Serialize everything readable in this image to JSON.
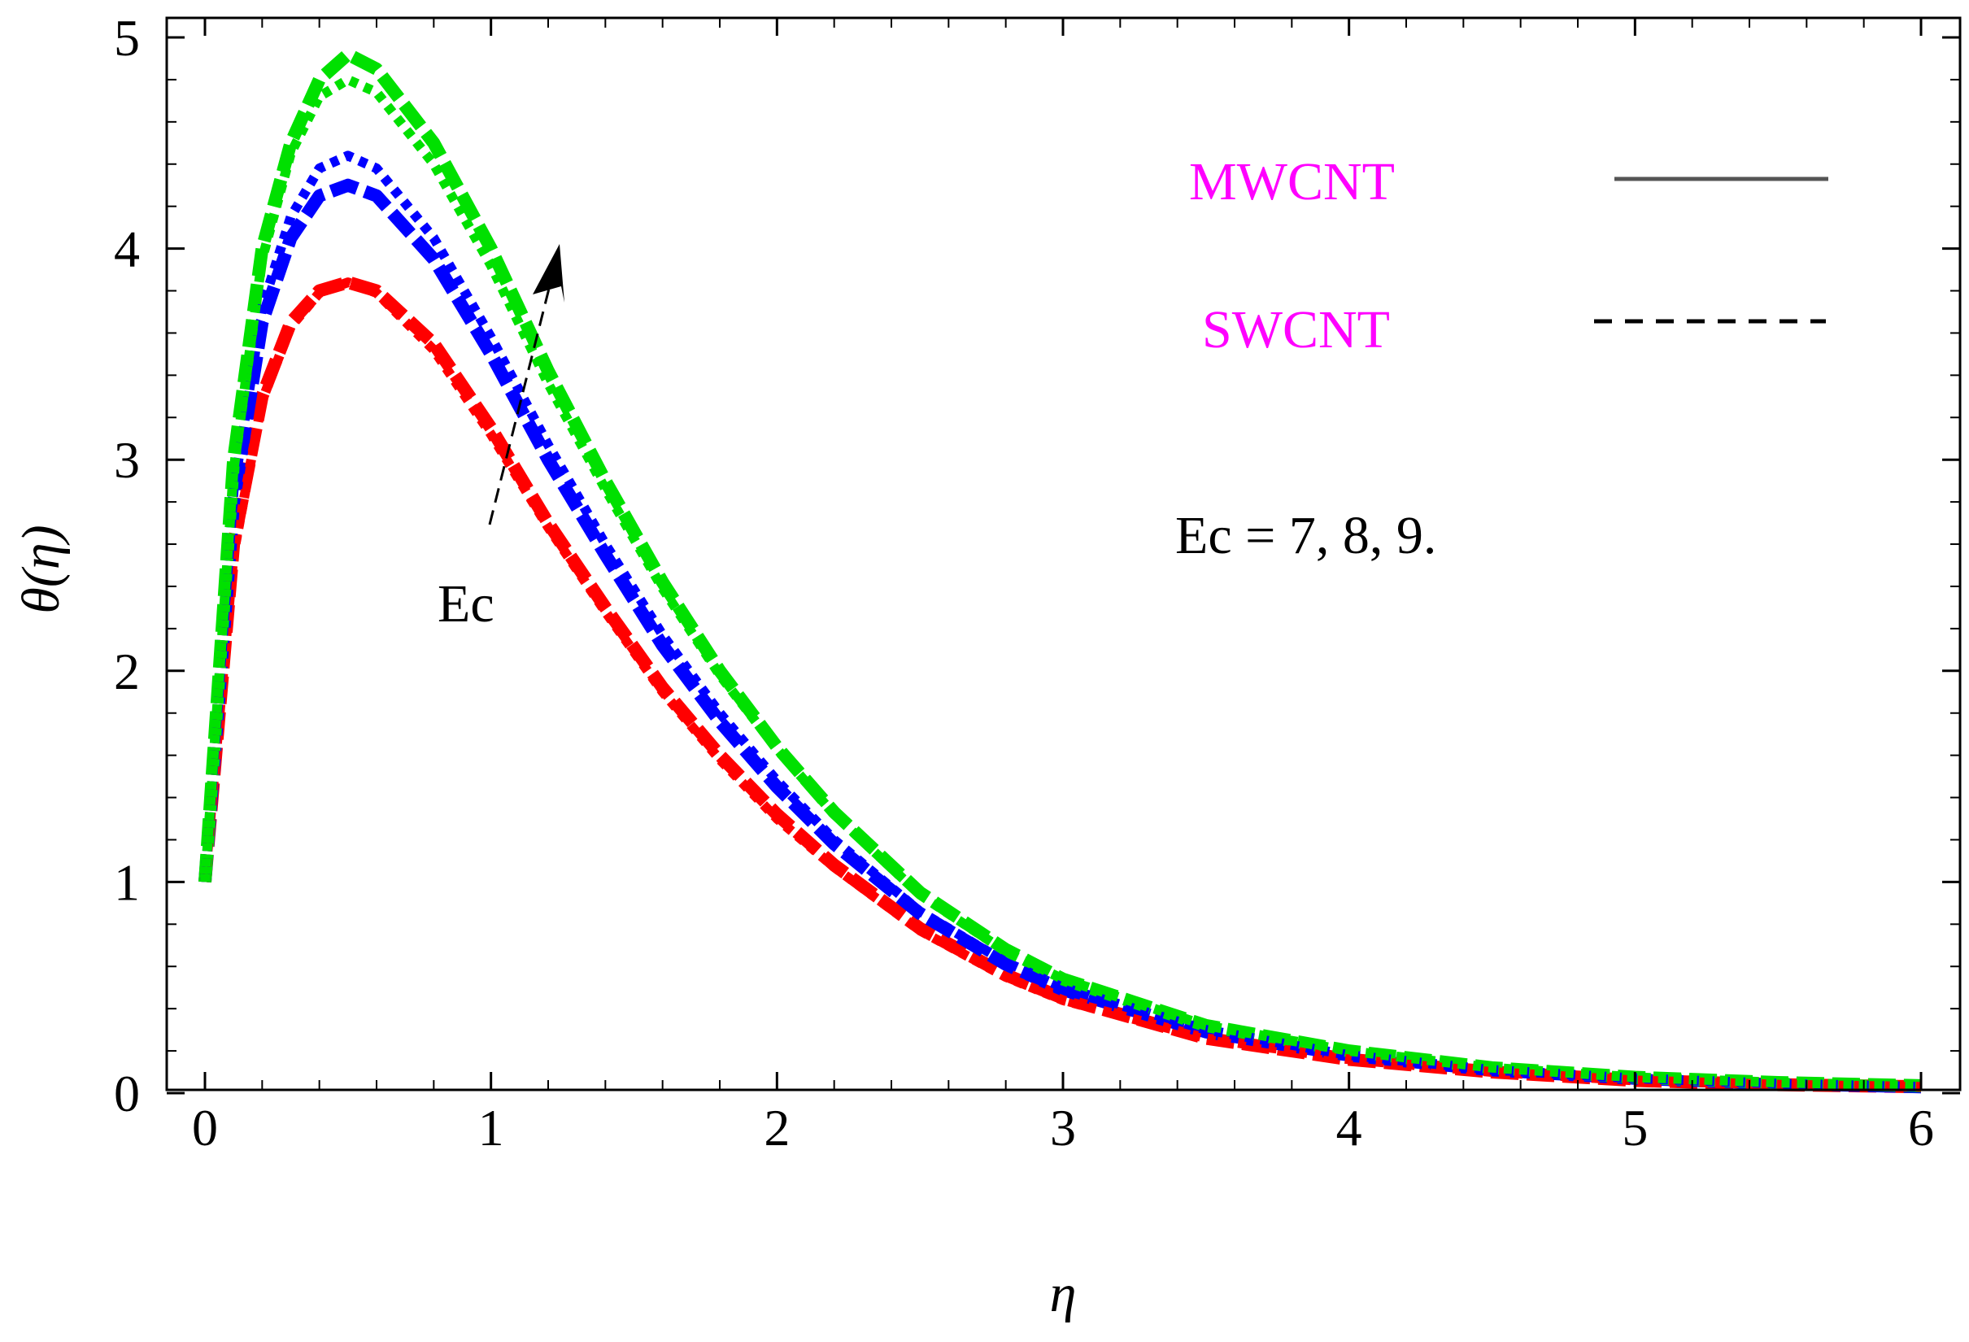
{
  "chart_data": {
    "type": "line",
    "title": "",
    "xlabel": "η",
    "ylabel": "θ(η)",
    "xlim": [
      0,
      6
    ],
    "ylim": [
      0,
      5
    ],
    "x_ticks": [
      "0",
      "1",
      "2",
      "3",
      "4",
      "5",
      "6"
    ],
    "y_ticks": [
      "0",
      "1",
      "2",
      "3",
      "4",
      "5"
    ],
    "legend": {
      "position": "top-right",
      "entries": [
        {
          "label": "MWCNT",
          "style": "solid"
        },
        {
          "label": "SWCNT",
          "style": "dashed"
        }
      ]
    },
    "annotations": {
      "param_text": "Ec = 7, 8, 9.",
      "arrow_label": "Ec"
    },
    "colors": {
      "Ec7": "#ff0000",
      "Ec8": "#0000ff",
      "Ec9": "#00e000",
      "legend_text": "#ff00ff"
    },
    "x": [
      0,
      0.1,
      0.2,
      0.3,
      0.4,
      0.5,
      0.6,
      0.8,
      1.0,
      1.2,
      1.4,
      1.6,
      1.8,
      2.0,
      2.2,
      2.5,
      2.8,
      3.0,
      3.5,
      4.0,
      4.5,
      5.0,
      5.5,
      6.0
    ],
    "series": [
      {
        "name": "MWCNT, Ec = 7",
        "line": "solid",
        "color_key": "Ec7",
        "values": [
          1.0,
          2.6,
          3.3,
          3.65,
          3.8,
          3.84,
          3.8,
          3.55,
          3.15,
          2.7,
          2.3,
          1.92,
          1.6,
          1.32,
          1.08,
          0.78,
          0.56,
          0.45,
          0.26,
          0.16,
          0.1,
          0.06,
          0.04,
          0.03
        ]
      },
      {
        "name": "MWCNT, Ec = 8",
        "line": "solid",
        "color_key": "Ec8",
        "values": [
          1.0,
          2.8,
          3.65,
          4.05,
          4.25,
          4.3,
          4.25,
          3.95,
          3.5,
          3.0,
          2.55,
          2.12,
          1.76,
          1.45,
          1.18,
          0.85,
          0.61,
          0.49,
          0.29,
          0.18,
          0.11,
          0.07,
          0.045,
          0.03
        ]
      },
      {
        "name": "MWCNT, Ec = 9",
        "line": "solid",
        "color_key": "Ec9",
        "values": [
          1.0,
          3.0,
          4.0,
          4.5,
          4.8,
          4.92,
          4.85,
          4.5,
          4.0,
          3.42,
          2.9,
          2.42,
          2.0,
          1.64,
          1.33,
          0.95,
          0.68,
          0.54,
          0.32,
          0.2,
          0.12,
          0.075,
          0.05,
          0.035
        ]
      },
      {
        "name": "SWCNT, Ec = 7",
        "line": "dashed",
        "color_key": "Ec7",
        "values": [
          1.0,
          2.55,
          3.28,
          3.63,
          3.79,
          3.84,
          3.79,
          3.52,
          3.12,
          2.68,
          2.28,
          1.9,
          1.58,
          1.3,
          1.07,
          0.77,
          0.55,
          0.44,
          0.26,
          0.16,
          0.1,
          0.06,
          0.04,
          0.03
        ]
      },
      {
        "name": "SWCNT, Ec = 8",
        "line": "dashed",
        "color_key": "Ec8",
        "values": [
          1.0,
          2.85,
          3.72,
          4.15,
          4.38,
          4.44,
          4.38,
          4.05,
          3.58,
          3.07,
          2.6,
          2.17,
          1.8,
          1.48,
          1.2,
          0.86,
          0.62,
          0.5,
          0.3,
          0.18,
          0.11,
          0.07,
          0.045,
          0.03
        ]
      },
      {
        "name": "SWCNT, Ec = 9",
        "line": "dashed",
        "color_key": "Ec9",
        "values": [
          1.0,
          2.95,
          3.95,
          4.45,
          4.72,
          4.8,
          4.74,
          4.4,
          3.92,
          3.36,
          2.86,
          2.39,
          1.98,
          1.63,
          1.32,
          0.94,
          0.67,
          0.54,
          0.32,
          0.2,
          0.12,
          0.075,
          0.05,
          0.035
        ]
      }
    ]
  }
}
